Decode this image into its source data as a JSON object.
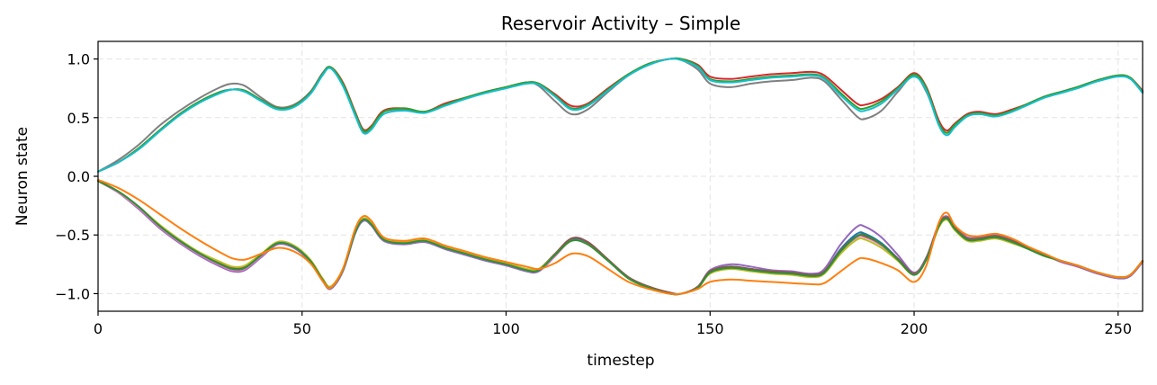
{
  "chart_data": {
    "type": "line",
    "title": "Reservoir Activity – Simple",
    "xlabel": "timestep",
    "ylabel": "Neuron state",
    "xlim": [
      0,
      256
    ],
    "ylim": [
      -1.15,
      1.15
    ],
    "x_ticks": [
      0,
      50,
      100,
      150,
      200,
      250
    ],
    "y_ticks": [
      1.0,
      0.5,
      0.0,
      -0.5,
      -1.0
    ],
    "x_tick_labels": [
      "0",
      "50",
      "100",
      "150",
      "200",
      "250"
    ],
    "y_tick_labels": [
      "1.0",
      "0.5",
      "0.0",
      "−0.5",
      "−1.0"
    ],
    "grid": true,
    "legend": "none",
    "x": [
      0,
      5,
      10,
      15,
      20,
      25,
      30,
      33,
      36,
      40,
      44,
      48,
      52,
      55,
      57,
      60,
      63,
      65,
      67,
      70,
      75,
      80,
      85,
      90,
      95,
      100,
      105,
      108,
      112,
      116,
      120,
      125,
      130,
      135,
      140,
      143,
      147,
      150,
      155,
      160,
      165,
      170,
      175,
      178,
      182,
      186,
      188,
      192,
      196,
      200,
      203,
      206,
      208,
      210,
      213,
      216,
      220,
      224,
      228,
      232,
      236,
      240,
      245,
      250,
      253,
      256
    ],
    "series": [
      {
        "color": "#7f7f7f",
        "values": [
          0.04,
          0.14,
          0.27,
          0.43,
          0.56,
          0.67,
          0.76,
          0.79,
          0.77,
          0.67,
          0.59,
          0.61,
          0.72,
          0.88,
          0.93,
          0.78,
          0.52,
          0.38,
          0.42,
          0.55,
          0.57,
          0.55,
          0.61,
          0.66,
          0.72,
          0.76,
          0.8,
          0.77,
          0.64,
          0.53,
          0.57,
          0.72,
          0.86,
          0.95,
          1.0,
          0.99,
          0.91,
          0.79,
          0.76,
          0.79,
          0.81,
          0.82,
          0.84,
          0.81,
          0.66,
          0.51,
          0.49,
          0.56,
          0.72,
          0.86,
          0.72,
          0.46,
          0.37,
          0.44,
          0.53,
          0.55,
          0.52,
          0.56,
          0.62,
          0.68,
          0.72,
          0.76,
          0.82,
          0.86,
          0.84,
          0.72
        ]
      },
      {
        "color": "#d62728",
        "values": [
          0.04,
          0.12,
          0.24,
          0.39,
          0.53,
          0.64,
          0.72,
          0.74,
          0.73,
          0.65,
          0.58,
          0.6,
          0.71,
          0.87,
          0.93,
          0.8,
          0.55,
          0.4,
          0.43,
          0.56,
          0.58,
          0.55,
          0.62,
          0.67,
          0.72,
          0.76,
          0.8,
          0.79,
          0.7,
          0.6,
          0.62,
          0.75,
          0.87,
          0.96,
          1.0,
          1.0,
          0.95,
          0.85,
          0.83,
          0.85,
          0.87,
          0.88,
          0.89,
          0.86,
          0.74,
          0.62,
          0.61,
          0.66,
          0.76,
          0.88,
          0.76,
          0.48,
          0.39,
          0.45,
          0.53,
          0.55,
          0.53,
          0.57,
          0.62,
          0.68,
          0.72,
          0.76,
          0.82,
          0.86,
          0.84,
          0.73
        ]
      },
      {
        "color": "#2ca02c",
        "values": [
          0.04,
          0.12,
          0.24,
          0.39,
          0.53,
          0.64,
          0.72,
          0.74,
          0.73,
          0.65,
          0.58,
          0.6,
          0.71,
          0.87,
          0.93,
          0.79,
          0.54,
          0.39,
          0.42,
          0.55,
          0.58,
          0.55,
          0.61,
          0.67,
          0.72,
          0.76,
          0.8,
          0.79,
          0.69,
          0.58,
          0.61,
          0.74,
          0.87,
          0.96,
          1.0,
          1.0,
          0.94,
          0.83,
          0.81,
          0.83,
          0.85,
          0.86,
          0.87,
          0.84,
          0.71,
          0.59,
          0.58,
          0.64,
          0.75,
          0.87,
          0.75,
          0.46,
          0.37,
          0.44,
          0.52,
          0.54,
          0.52,
          0.56,
          0.62,
          0.68,
          0.72,
          0.76,
          0.82,
          0.86,
          0.84,
          0.72
        ]
      },
      {
        "color": "#17becf",
        "values": [
          0.04,
          0.12,
          0.23,
          0.38,
          0.52,
          0.63,
          0.71,
          0.74,
          0.72,
          0.64,
          0.57,
          0.59,
          0.7,
          0.86,
          0.92,
          0.77,
          0.52,
          0.37,
          0.4,
          0.53,
          0.56,
          0.54,
          0.6,
          0.66,
          0.71,
          0.75,
          0.79,
          0.78,
          0.68,
          0.57,
          0.6,
          0.73,
          0.86,
          0.95,
          1.0,
          0.99,
          0.93,
          0.82,
          0.8,
          0.82,
          0.84,
          0.85,
          0.86,
          0.83,
          0.69,
          0.57,
          0.56,
          0.62,
          0.74,
          0.85,
          0.73,
          0.44,
          0.35,
          0.42,
          0.51,
          0.53,
          0.51,
          0.55,
          0.61,
          0.67,
          0.71,
          0.75,
          0.81,
          0.85,
          0.83,
          0.71
        ]
      },
      {
        "color": "#1f77b4",
        "values": [
          -0.04,
          -0.13,
          -0.26,
          -0.42,
          -0.55,
          -0.66,
          -0.75,
          -0.79,
          -0.78,
          -0.68,
          -0.57,
          -0.6,
          -0.72,
          -0.88,
          -0.95,
          -0.8,
          -0.48,
          -0.37,
          -0.41,
          -0.54,
          -0.57,
          -0.55,
          -0.61,
          -0.66,
          -0.71,
          -0.75,
          -0.8,
          -0.8,
          -0.67,
          -0.54,
          -0.57,
          -0.72,
          -0.87,
          -0.95,
          -1.0,
          -1.0,
          -0.94,
          -0.81,
          -0.77,
          -0.79,
          -0.81,
          -0.82,
          -0.84,
          -0.81,
          -0.62,
          -0.49,
          -0.49,
          -0.57,
          -0.7,
          -0.83,
          -0.7,
          -0.42,
          -0.35,
          -0.44,
          -0.53,
          -0.53,
          -0.51,
          -0.55,
          -0.61,
          -0.67,
          -0.72,
          -0.76,
          -0.82,
          -0.86,
          -0.84,
          -0.72
        ]
      },
      {
        "color": "#9467bd",
        "values": [
          -0.04,
          -0.14,
          -0.28,
          -0.44,
          -0.57,
          -0.68,
          -0.77,
          -0.81,
          -0.8,
          -0.69,
          -0.58,
          -0.61,
          -0.73,
          -0.89,
          -0.96,
          -0.81,
          -0.49,
          -0.38,
          -0.42,
          -0.55,
          -0.58,
          -0.56,
          -0.62,
          -0.67,
          -0.72,
          -0.76,
          -0.81,
          -0.81,
          -0.68,
          -0.53,
          -0.56,
          -0.71,
          -0.86,
          -0.95,
          -1.0,
          -1.0,
          -0.94,
          -0.8,
          -0.75,
          -0.77,
          -0.8,
          -0.81,
          -0.83,
          -0.79,
          -0.58,
          -0.43,
          -0.43,
          -0.52,
          -0.67,
          -0.82,
          -0.69,
          -0.41,
          -0.34,
          -0.43,
          -0.52,
          -0.52,
          -0.5,
          -0.54,
          -0.61,
          -0.67,
          -0.73,
          -0.77,
          -0.83,
          -0.87,
          -0.85,
          -0.73
        ]
      },
      {
        "color": "#e377c2",
        "values": [
          -0.04,
          -0.14,
          -0.27,
          -0.43,
          -0.56,
          -0.67,
          -0.76,
          -0.8,
          -0.79,
          -0.68,
          -0.57,
          -0.6,
          -0.72,
          -0.88,
          -0.95,
          -0.8,
          -0.48,
          -0.37,
          -0.41,
          -0.54,
          -0.57,
          -0.55,
          -0.61,
          -0.66,
          -0.71,
          -0.75,
          -0.8,
          -0.8,
          -0.68,
          -0.55,
          -0.58,
          -0.72,
          -0.87,
          -0.95,
          -1.0,
          -1.0,
          -0.95,
          -0.82,
          -0.78,
          -0.8,
          -0.82,
          -0.83,
          -0.85,
          -0.82,
          -0.64,
          -0.52,
          -0.52,
          -0.59,
          -0.71,
          -0.84,
          -0.71,
          -0.43,
          -0.36,
          -0.45,
          -0.54,
          -0.54,
          -0.52,
          -0.56,
          -0.62,
          -0.68,
          -0.72,
          -0.76,
          -0.82,
          -0.86,
          -0.84,
          -0.72
        ]
      },
      {
        "color": "#8c564b",
        "values": [
          -0.04,
          -0.13,
          -0.26,
          -0.42,
          -0.55,
          -0.66,
          -0.74,
          -0.78,
          -0.77,
          -0.67,
          -0.56,
          -0.59,
          -0.71,
          -0.87,
          -0.94,
          -0.79,
          -0.47,
          -0.36,
          -0.4,
          -0.53,
          -0.56,
          -0.54,
          -0.6,
          -0.65,
          -0.7,
          -0.74,
          -0.79,
          -0.79,
          -0.66,
          -0.53,
          -0.56,
          -0.71,
          -0.86,
          -0.94,
          -0.99,
          -1.0,
          -0.94,
          -0.81,
          -0.77,
          -0.79,
          -0.81,
          -0.82,
          -0.84,
          -0.81,
          -0.63,
          -0.51,
          -0.51,
          -0.58,
          -0.7,
          -0.83,
          -0.7,
          -0.42,
          -0.35,
          -0.44,
          -0.53,
          -0.53,
          -0.51,
          -0.55,
          -0.61,
          -0.67,
          -0.72,
          -0.76,
          -0.82,
          -0.86,
          -0.84,
          -0.72
        ]
      },
      {
        "color": "#bcbd22",
        "values": [
          -0.04,
          -0.13,
          -0.26,
          -0.41,
          -0.54,
          -0.65,
          -0.73,
          -0.77,
          -0.76,
          -0.66,
          -0.56,
          -0.59,
          -0.71,
          -0.87,
          -0.94,
          -0.79,
          -0.47,
          -0.36,
          -0.4,
          -0.53,
          -0.56,
          -0.54,
          -0.6,
          -0.65,
          -0.7,
          -0.74,
          -0.79,
          -0.79,
          -0.67,
          -0.55,
          -0.58,
          -0.72,
          -0.87,
          -0.95,
          -1.0,
          -1.0,
          -0.95,
          -0.83,
          -0.79,
          -0.81,
          -0.83,
          -0.84,
          -0.86,
          -0.83,
          -0.66,
          -0.54,
          -0.54,
          -0.61,
          -0.72,
          -0.84,
          -0.71,
          -0.44,
          -0.37,
          -0.46,
          -0.55,
          -0.55,
          -0.53,
          -0.57,
          -0.62,
          -0.68,
          -0.72,
          -0.76,
          -0.82,
          -0.86,
          -0.84,
          -0.72
        ]
      },
      {
        "color": "#2f8f3a",
        "values": [
          -0.04,
          -0.13,
          -0.26,
          -0.42,
          -0.55,
          -0.66,
          -0.75,
          -0.79,
          -0.78,
          -0.67,
          -0.57,
          -0.6,
          -0.72,
          -0.88,
          -0.95,
          -0.8,
          -0.48,
          -0.37,
          -0.41,
          -0.54,
          -0.57,
          -0.55,
          -0.61,
          -0.66,
          -0.71,
          -0.75,
          -0.8,
          -0.8,
          -0.67,
          -0.55,
          -0.58,
          -0.72,
          -0.87,
          -0.95,
          -1.0,
          -1.0,
          -0.95,
          -0.82,
          -0.78,
          -0.8,
          -0.82,
          -0.83,
          -0.85,
          -0.82,
          -0.64,
          -0.51,
          -0.5,
          -0.58,
          -0.71,
          -0.84,
          -0.71,
          -0.43,
          -0.36,
          -0.45,
          -0.54,
          -0.54,
          -0.52,
          -0.56,
          -0.62,
          -0.68,
          -0.72,
          -0.76,
          -0.82,
          -0.86,
          -0.84,
          -0.72
        ]
      },
      {
        "color": "#ff7f0e",
        "values": [
          -0.03,
          -0.1,
          -0.2,
          -0.32,
          -0.44,
          -0.55,
          -0.65,
          -0.7,
          -0.71,
          -0.66,
          -0.61,
          -0.64,
          -0.74,
          -0.89,
          -0.95,
          -0.79,
          -0.45,
          -0.34,
          -0.38,
          -0.52,
          -0.55,
          -0.53,
          -0.59,
          -0.64,
          -0.69,
          -0.73,
          -0.77,
          -0.79,
          -0.74,
          -0.66,
          -0.68,
          -0.79,
          -0.9,
          -0.96,
          -1.0,
          -1.0,
          -0.96,
          -0.9,
          -0.88,
          -0.89,
          -0.9,
          -0.91,
          -0.92,
          -0.91,
          -0.81,
          -0.71,
          -0.7,
          -0.74,
          -0.8,
          -0.9,
          -0.76,
          -0.4,
          -0.31,
          -0.42,
          -0.5,
          -0.51,
          -0.49,
          -0.53,
          -0.6,
          -0.66,
          -0.72,
          -0.76,
          -0.82,
          -0.86,
          -0.84,
          -0.72
        ]
      }
    ]
  }
}
